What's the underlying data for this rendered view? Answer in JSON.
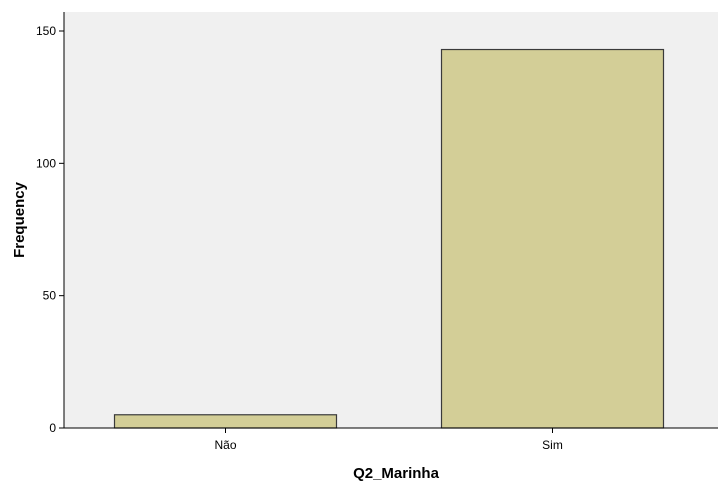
{
  "chart_data": {
    "type": "bar",
    "categories": [
      "Não",
      "Sim"
    ],
    "values": [
      5,
      143
    ],
    "xlabel": "Q2_Marinha",
    "ylabel": "Frequency",
    "ylim": [
      0,
      150
    ],
    "yticks": [
      0,
      50,
      100,
      150
    ],
    "grid": false,
    "colors": {
      "plot_background": "#f0f0f0",
      "bar_fill": "#d3ce97",
      "bar_stroke": "#3a3a3a",
      "axis": "#000000"
    }
  }
}
